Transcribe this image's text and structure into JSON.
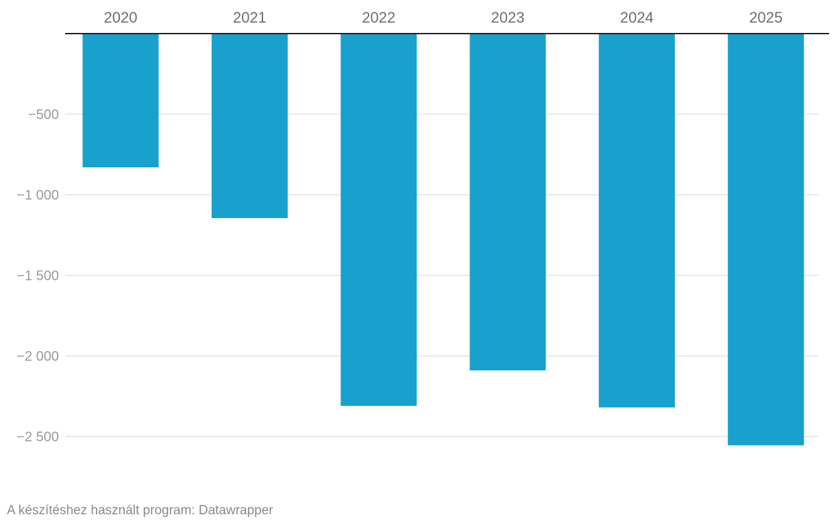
{
  "chart_data": {
    "type": "bar",
    "categories": [
      "2020",
      "2021",
      "2022",
      "2023",
      "2024",
      "2025"
    ],
    "values": [
      -830,
      -1145,
      -2310,
      -2090,
      -2320,
      -2555
    ],
    "ylim": [
      -2750,
      0
    ],
    "yticks": [
      -500,
      -1000,
      -1500,
      -2000,
      -2500
    ],
    "ytick_labels": [
      "−500",
      "−1 000",
      "−1 500",
      "−2 000",
      "−2 500"
    ],
    "x_axis_position": "top",
    "grid": true,
    "bar_color": "#18a1cd"
  },
  "footer": {
    "credit": "A készítéshez használt program: Datawrapper"
  }
}
